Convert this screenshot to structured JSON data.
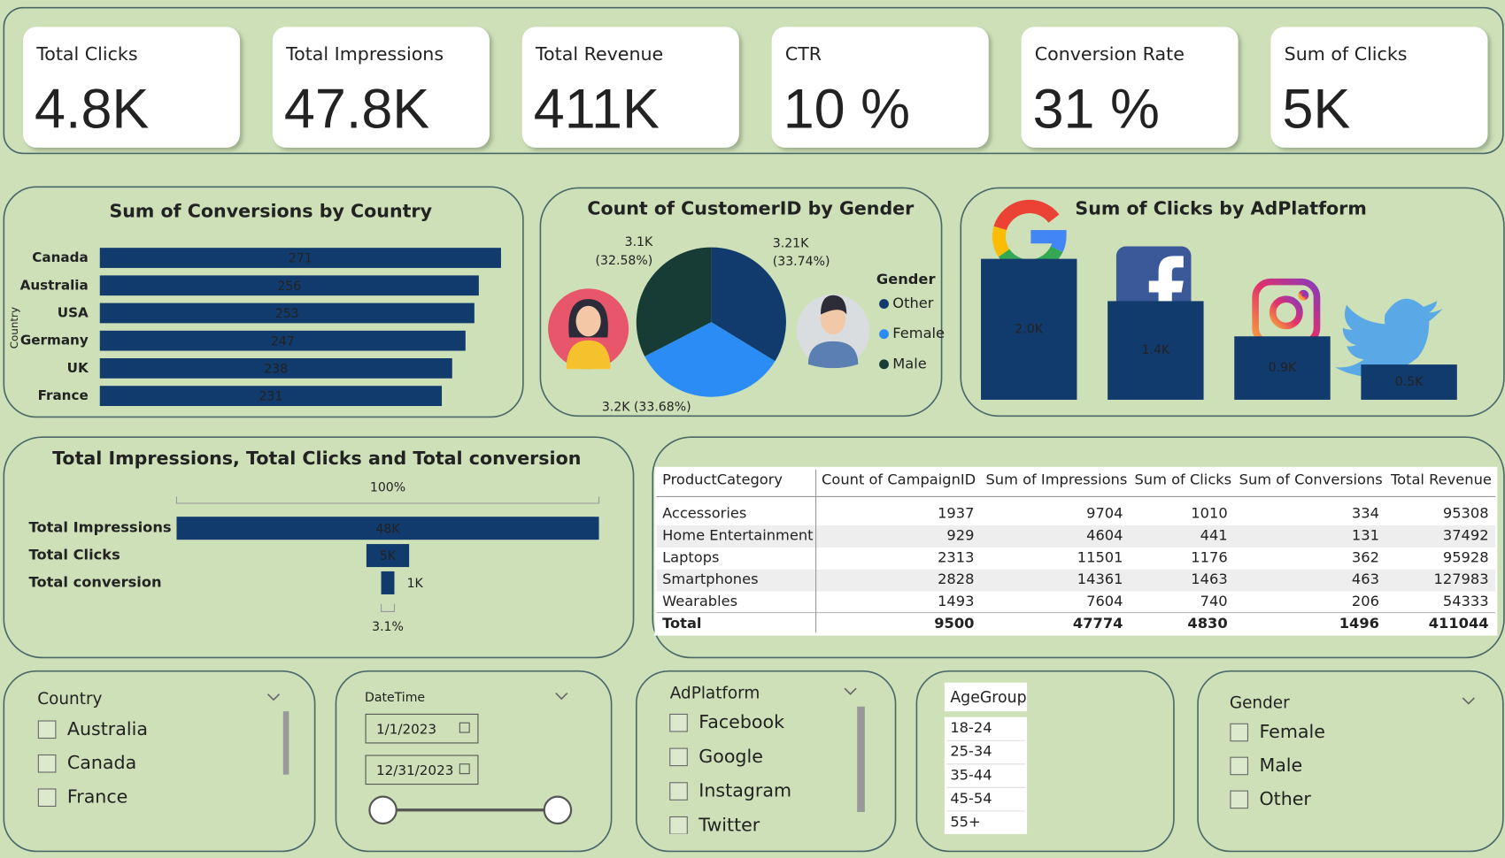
{
  "kpis": [
    {
      "label": "Total Clicks",
      "value": "4.8K"
    },
    {
      "label": "Total Impressions",
      "value": "47.8K"
    },
    {
      "label": "Total Revenue",
      "value": "411K"
    },
    {
      "label": "CTR",
      "value": "10 %"
    },
    {
      "label": "Conversion Rate",
      "value": "31 %"
    },
    {
      "label": "Sum of Clicks",
      "value": "5K"
    }
  ],
  "chart_data": [
    {
      "type": "hbar",
      "title": "Sum of Conversions by Country",
      "y_label": "Country",
      "categories": [
        "Canada",
        "Australia",
        "USA",
        "Germany",
        "UK",
        "France"
      ],
      "values": [
        271,
        256,
        253,
        247,
        238,
        231
      ],
      "color": "#123b6d"
    },
    {
      "type": "pie",
      "title": "Count of CustomerID by Gender",
      "legend_title": "Gender",
      "categories": [
        "Other",
        "Female",
        "Male"
      ],
      "values": [
        33.74,
        33.68,
        32.58
      ],
      "value_labels": [
        "3.21K (33.74%)",
        "3.2K (33.68%)",
        "3.1K (32.58%)"
      ],
      "colors": [
        "#123b6d",
        "#2a8cf4",
        "#173b35"
      ]
    },
    {
      "type": "bar",
      "title": "Sum of Clicks by AdPlatform",
      "categories": [
        null,
        null,
        null,
        null
      ],
      "values": [
        2000,
        1400,
        900,
        500
      ],
      "value_labels": [
        "2.0K",
        "1.4K",
        "0.9K",
        "0.5K"
      ],
      "color": "#123b6d"
    },
    {
      "type": "funnel",
      "title": "Total Impressions, Total Clicks and Total conversion",
      "categories": [
        "Total Impressions",
        "Total Clicks",
        "Total conversion"
      ],
      "values": [
        47774,
        4830,
        1496
      ],
      "value_labels": [
        "48K",
        "5K",
        "1K"
      ],
      "top_label": "100%",
      "bottom_label": "3.1%",
      "color": "#123b6d"
    }
  ],
  "table": {
    "columns": [
      "ProductCategory",
      "Count of CampaignID",
      "Sum of Impressions",
      "Sum of Clicks",
      "Sum of Conversions",
      "Total Revenue"
    ],
    "rows": [
      [
        "Accessories",
        1937,
        9704,
        1010,
        334,
        95308
      ],
      [
        "Home Entertainment",
        929,
        4604,
        441,
        131,
        37492
      ],
      [
        "Laptops",
        2313,
        11501,
        1176,
        362,
        95928
      ],
      [
        "Smartphones",
        2828,
        14361,
        1463,
        463,
        127983
      ],
      [
        "Wearables",
        1493,
        7604,
        740,
        206,
        54333
      ]
    ],
    "total": [
      "Total",
      9500,
      47774,
      4830,
      1496,
      411044
    ]
  },
  "slicers": {
    "country": {
      "title": "Country",
      "items": [
        "Australia",
        "Canada",
        "France"
      ]
    },
    "date": {
      "title": "DateTime",
      "start": "1/1/2023",
      "end": "12/31/2023"
    },
    "platform": {
      "title": "AdPlatform",
      "items": [
        "Facebook",
        "Google",
        "Instagram",
        "Twitter"
      ]
    },
    "age": {
      "title": "AgeGroup",
      "items": [
        "18-24",
        "25-34",
        "35-44",
        "45-54",
        "55+"
      ]
    },
    "gender": {
      "title": "Gender",
      "items": [
        "Female",
        "Male",
        "Other"
      ]
    }
  }
}
